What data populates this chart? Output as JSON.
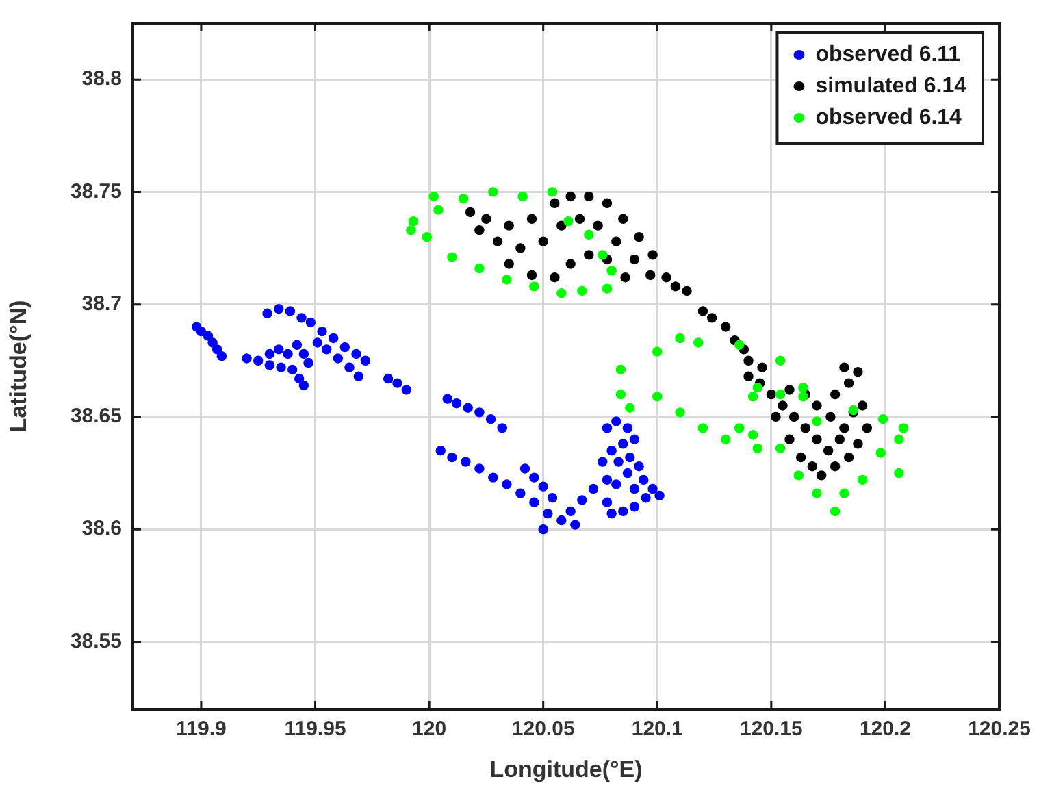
{
  "chart_data": {
    "type": "scatter",
    "xlabel": "Longitude(°E)",
    "ylabel": "Latitude(°N)",
    "xlim": [
      119.87,
      120.25
    ],
    "ylim": [
      38.52,
      38.825
    ],
    "xticks": [
      119.9,
      119.95,
      120,
      120.05,
      120.1,
      120.15,
      120.2,
      120.25
    ],
    "yticks": [
      38.55,
      38.6,
      38.65,
      38.7,
      38.75,
      38.8
    ],
    "grid": true,
    "legend": "top right",
    "marker": "circle",
    "series": [
      {
        "name": "observed 6.11",
        "color": "#0000ff",
        "x": [
          119.898,
          119.9,
          119.903,
          119.905,
          119.907,
          119.909,
          119.929,
          119.934,
          119.939,
          119.944,
          119.948,
          119.953,
          119.958,
          119.963,
          119.968,
          119.972,
          119.951,
          119.955,
          119.96,
          119.965,
          119.969,
          119.92,
          119.925,
          119.93,
          119.935,
          119.938,
          119.942,
          119.945,
          119.94,
          119.943,
          119.945,
          119.934,
          119.947,
          119.93,
          119.982,
          119.986,
          119.99,
          120.008,
          120.012,
          120.017,
          120.022,
          120.027,
          120.032,
          120.005,
          120.01,
          120.016,
          120.022,
          120.028,
          120.034,
          120.04,
          120.046,
          120.052,
          120.058,
          120.064,
          120.042,
          120.046,
          120.05,
          120.054,
          120.05,
          120.062,
          120.067,
          120.072,
          120.078,
          120.082,
          120.087,
          120.09,
          120.085,
          120.08,
          120.076,
          120.083,
          120.088,
          120.092,
          120.094,
          120.098,
          120.101,
          120.095,
          120.09,
          120.085,
          120.08,
          120.078,
          120.082,
          120.087,
          120.078,
          120.09
        ],
        "values": [
          38.69,
          38.688,
          38.686,
          38.683,
          38.68,
          38.677,
          38.696,
          38.698,
          38.697,
          38.694,
          38.692,
          38.688,
          38.685,
          38.681,
          38.678,
          38.675,
          38.683,
          38.68,
          38.676,
          38.672,
          38.668,
          38.676,
          38.675,
          38.673,
          38.672,
          38.678,
          38.682,
          38.678,
          38.671,
          38.667,
          38.664,
          38.68,
          38.674,
          38.678,
          38.667,
          38.665,
          38.662,
          38.658,
          38.656,
          38.654,
          38.652,
          38.649,
          38.645,
          38.635,
          38.632,
          38.63,
          38.627,
          38.623,
          38.62,
          38.616,
          38.612,
          38.607,
          38.604,
          38.602,
          38.627,
          38.623,
          38.619,
          38.614,
          38.6,
          38.608,
          38.613,
          38.618,
          38.645,
          38.648,
          38.645,
          38.64,
          38.638,
          38.635,
          38.63,
          38.63,
          38.632,
          38.628,
          38.622,
          38.618,
          38.615,
          38.614,
          38.61,
          38.608,
          38.607,
          38.612,
          38.62,
          38.625,
          38.622,
          38.618
        ]
      },
      {
        "name": "simulated 6.14",
        "color": "#000000",
        "x": [
          120.018,
          120.025,
          120.035,
          120.045,
          120.055,
          120.062,
          120.07,
          120.078,
          120.085,
          120.092,
          120.098,
          120.022,
          120.03,
          120.04,
          120.05,
          120.058,
          120.066,
          120.074,
          120.082,
          120.09,
          120.097,
          120.035,
          120.045,
          120.055,
          120.062,
          120.07,
          120.078,
          120.086,
          120.104,
          120.108,
          120.113,
          120.12,
          120.124,
          120.13,
          120.134,
          120.138,
          120.14,
          120.14,
          120.145,
          120.15,
          120.155,
          120.16,
          120.165,
          120.17,
          120.175,
          120.152,
          120.158,
          120.163,
          120.168,
          120.172,
          120.178,
          120.184,
          120.188,
          120.182,
          120.176,
          120.17,
          120.178,
          120.184,
          120.188,
          120.182,
          120.19,
          120.192,
          120.186,
          120.18,
          120.165,
          120.158,
          120.146
        ],
        "values": [
          38.741,
          38.738,
          38.735,
          38.738,
          38.745,
          38.748,
          38.748,
          38.745,
          38.738,
          38.73,
          38.722,
          38.733,
          38.728,
          38.725,
          38.728,
          38.735,
          38.738,
          38.735,
          38.728,
          38.72,
          38.713,
          38.718,
          38.713,
          38.712,
          38.718,
          38.722,
          38.72,
          38.712,
          38.712,
          38.708,
          38.706,
          38.697,
          38.694,
          38.69,
          38.684,
          38.68,
          38.675,
          38.668,
          38.665,
          38.66,
          38.655,
          38.65,
          38.645,
          38.64,
          38.635,
          38.65,
          38.64,
          38.632,
          38.628,
          38.624,
          38.628,
          38.632,
          38.638,
          38.645,
          38.65,
          38.655,
          38.66,
          38.665,
          38.67,
          38.672,
          38.655,
          38.645,
          38.652,
          38.64,
          38.66,
          38.662,
          38.672
        ]
      },
      {
        "name": "observed 6.14",
        "color": "#00ff00",
        "x": [
          120.002,
          120.015,
          120.028,
          120.041,
          120.054,
          120.061,
          120.07,
          120.076,
          120.08,
          120.078,
          120.067,
          120.058,
          120.046,
          120.034,
          120.022,
          120.01,
          119.999,
          119.992,
          119.993,
          120.004,
          120.084,
          120.1,
          120.11,
          120.118,
          120.136,
          120.154,
          120.164,
          120.17,
          120.186,
          120.199,
          120.208,
          120.206,
          120.198,
          120.206,
          120.19,
          120.182,
          120.178,
          120.17,
          120.162,
          120.154,
          120.144,
          120.142,
          120.142,
          120.136,
          120.13,
          120.12,
          120.11,
          120.1,
          120.088,
          120.084,
          120.144,
          120.154,
          120.164
        ],
        "values": [
          38.748,
          38.747,
          38.75,
          38.748,
          38.75,
          38.737,
          38.731,
          38.722,
          38.715,
          38.707,
          38.706,
          38.705,
          38.708,
          38.711,
          38.716,
          38.721,
          38.73,
          38.733,
          38.737,
          38.742,
          38.671,
          38.679,
          38.685,
          38.683,
          38.682,
          38.675,
          38.663,
          38.648,
          38.653,
          38.649,
          38.645,
          38.64,
          38.634,
          38.625,
          38.622,
          38.616,
          38.608,
          38.616,
          38.624,
          38.636,
          38.636,
          38.642,
          38.659,
          38.645,
          38.64,
          38.645,
          38.652,
          38.659,
          38.654,
          38.66,
          38.663,
          38.66,
          38.659
        ]
      }
    ]
  }
}
